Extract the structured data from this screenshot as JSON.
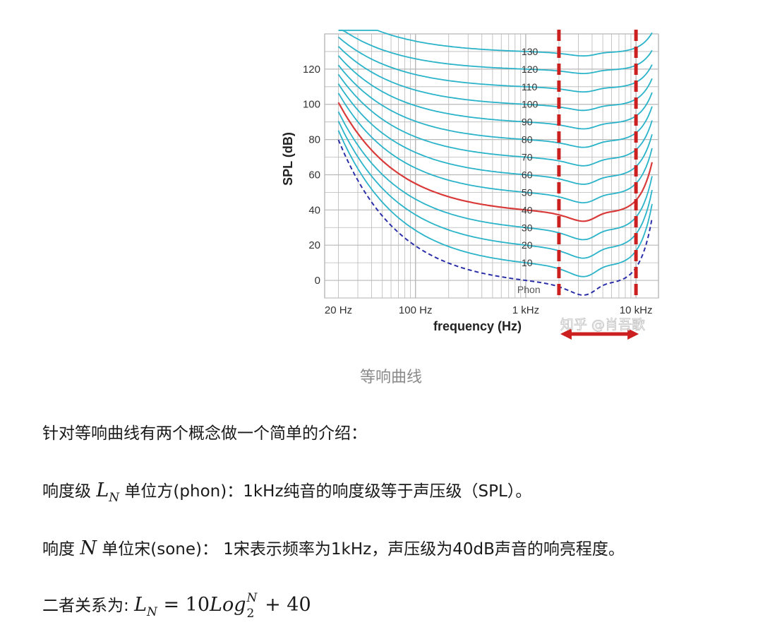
{
  "chart_data": {
    "type": "line",
    "xlabel": "frequency (Hz)",
    "ylabel": "SPL (dB)",
    "x_scale": "log",
    "xlim": [
      15,
      16000
    ],
    "ylim": [
      -10,
      140
    ],
    "x_ticks": [
      {
        "value": 20,
        "label": "20 Hz"
      },
      {
        "value": 100,
        "label": "100 Hz"
      },
      {
        "value": 1000,
        "label": "1 kHz"
      },
      {
        "value": 10000,
        "label": "10 kHz"
      }
    ],
    "y_ticks": [
      0,
      20,
      40,
      60,
      80,
      100,
      120
    ],
    "grid": true,
    "phon_unit_label": "Phon",
    "phon_levels": [
      10,
      20,
      30,
      40,
      50,
      60,
      70,
      80,
      90,
      100,
      110,
      120,
      130
    ],
    "highlight_level": 40,
    "highlight_band_hz": [
      2000,
      10000
    ],
    "colors": {
      "curves": "#2ab3c9",
      "highlight": "#d93a3a",
      "threshold": "#2b2fa8",
      "band": "#cc1f1f",
      "grid": "#b8b8b8"
    },
    "watermark": "知乎 @肖吾歌"
  },
  "caption": "等响曲线",
  "text": {
    "p1": "针对等响曲线有两个概念做一个简单的介绍：",
    "p2_a": "响度级 ",
    "p2_sym": "L",
    "p2_sub": "N",
    "p2_b": " 单位方(phon)：1kHz纯音的响度级等于声压级（SPL）。",
    "p3_a": "响度 ",
    "p3_sym": "N",
    "p3_b": " 单位宋(sone)： 1宋表示频率为1kHz，声压级为40dB声音的响亮程度。",
    "p4_a": "二者关系为: ",
    "p4_L": "L",
    "p4_Lsub": "N",
    "p4_eq": " = 10",
    "p4_log": "Log",
    "p4_sup": "N",
    "p4_logsub": "2",
    "p4_end": " + 40"
  }
}
